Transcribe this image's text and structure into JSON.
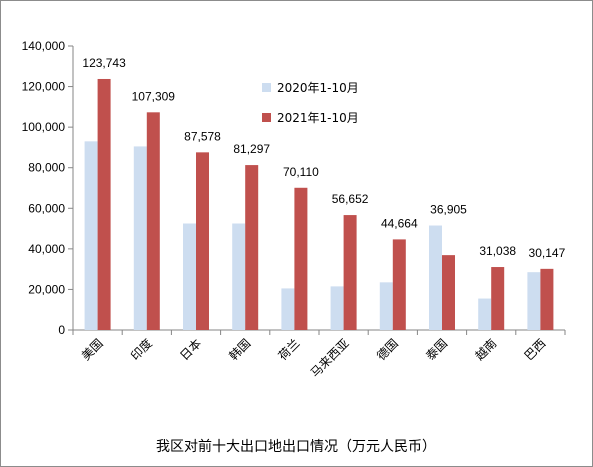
{
  "chart_data": {
    "type": "bar",
    "title": "我区对前十大出口地出口情况（万元人民币）",
    "categories": [
      "美国",
      "印度",
      "日本",
      "韩国",
      "荷兰",
      "马来西亚",
      "德国",
      "泰国",
      "越南",
      "巴西"
    ],
    "series": [
      {
        "name": "2020年1-10月",
        "color": "#cdddf0",
        "values": [
          93000,
          90500,
          52500,
          52500,
          20500,
          21500,
          23500,
          51500,
          15500,
          28500
        ]
      },
      {
        "name": "2021年1-10月",
        "color": "#c0504d",
        "values": [
          123743,
          107309,
          87578,
          81297,
          70110,
          56652,
          44664,
          36905,
          31038,
          30147
        ]
      }
    ],
    "data_labels": [
      "123,743",
      "107,309",
      "87,578",
      "81,297",
      "70,110",
      "56,652",
      "44,664",
      "36,905",
      "31,038",
      "30,147"
    ],
    "y_ticks": [
      "0",
      "20,000",
      "40,000",
      "60,000",
      "80,000",
      "100,000",
      "120,000",
      "140,000"
    ],
    "ylim": [
      0,
      140000
    ],
    "grid": false,
    "legend_position": "top-right"
  }
}
